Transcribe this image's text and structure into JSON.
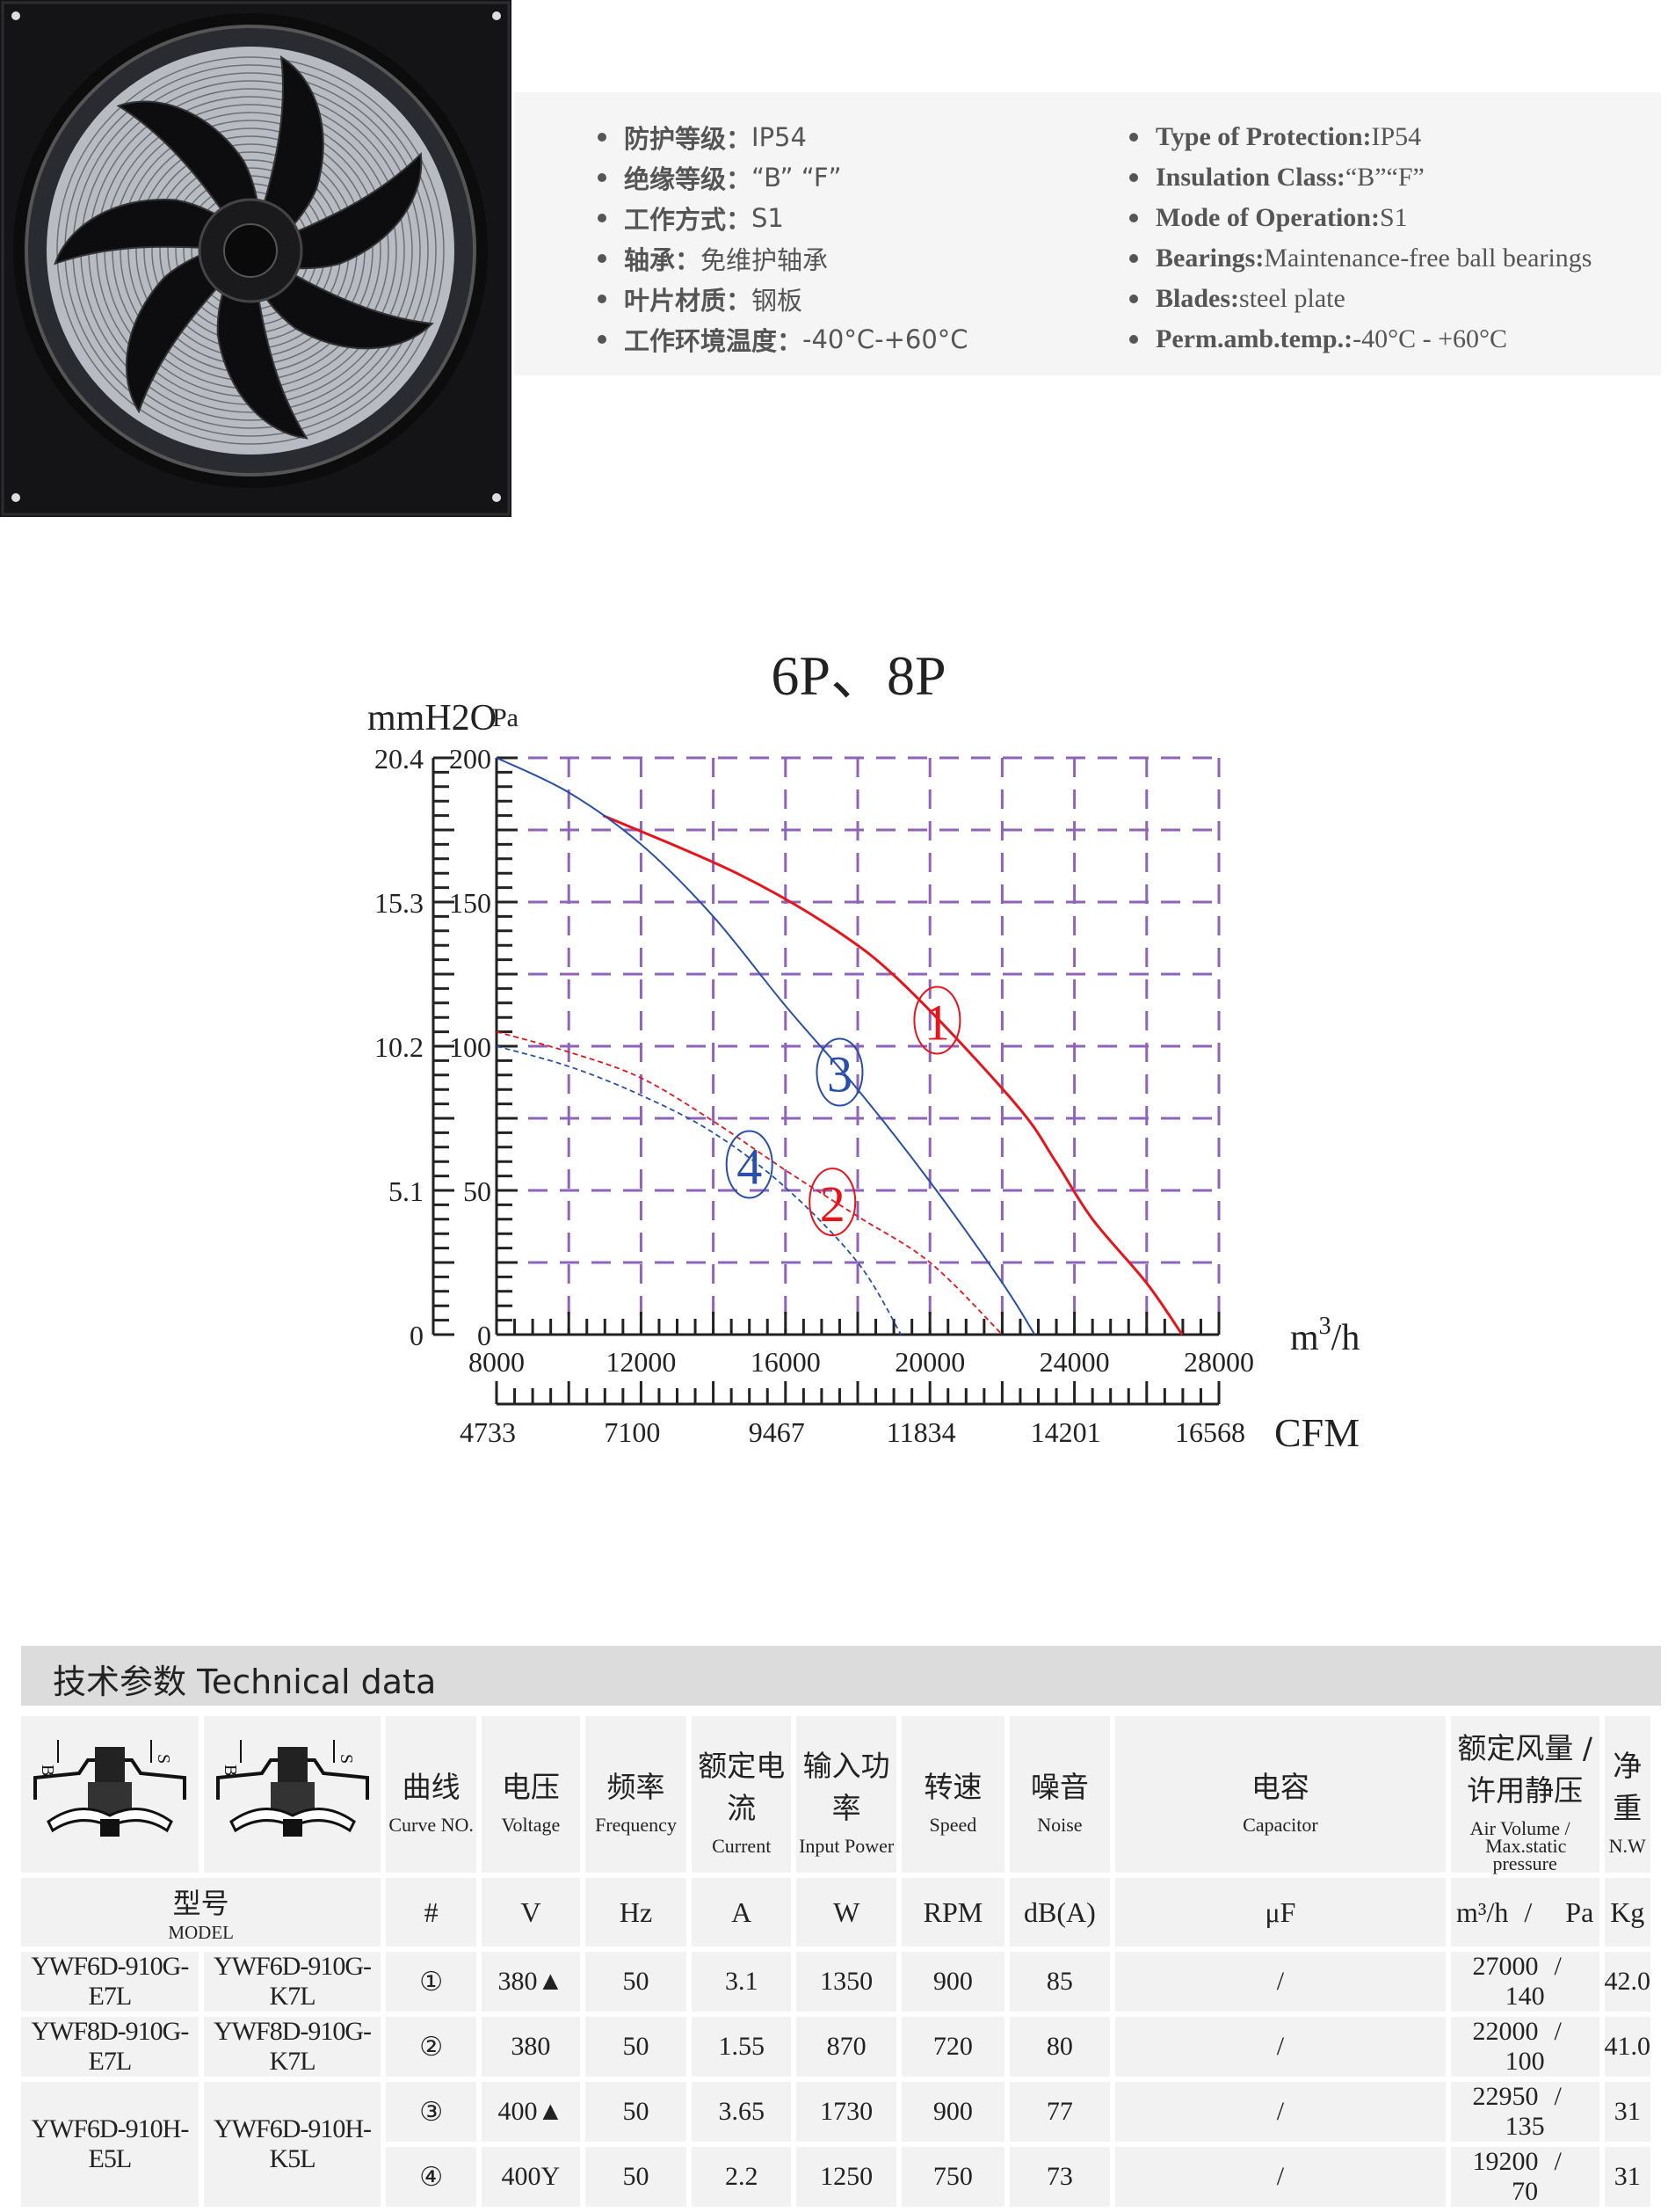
{
  "specs_zh": [
    {
      "label": "防护等级：",
      "value": "IP54"
    },
    {
      "label": "绝缘等级：",
      "value": "“B”  “F”"
    },
    {
      "label": "工作方式：",
      "value": "S1"
    },
    {
      "label": "轴承：",
      "value": "免维护轴承"
    },
    {
      "label": "叶片材质：",
      "value": "钢板"
    },
    {
      "label": "工作环境温度：",
      "value": "-40°C-+60°C"
    }
  ],
  "specs_en": [
    {
      "label": "Type of Protection:",
      "value": " IP54"
    },
    {
      "label": "Insulation Class:",
      "value": " “B”“F”"
    },
    {
      "label": "Mode of Operation:",
      "value": " S1"
    },
    {
      "label": "Bearings:",
      "value": " Maintenance-free ball bearings"
    },
    {
      "label": "Blades:",
      "value": " steel plate"
    },
    {
      "label": "Perm.amb.temp.:",
      "value": " -40°C - +60°C"
    }
  ],
  "chart_data": {
    "type": "line",
    "title": "6P、8P",
    "ylabel_left": "mmH2O",
    "ylabel_right": "Pa",
    "xlabel": "m3/h",
    "xlabel_secondary": "CFM",
    "xlim": [
      8000,
      28000
    ],
    "ylim": [
      0,
      200
    ],
    "x_ticks": [
      "8000",
      "12000",
      "16000",
      "20000",
      "24000",
      "28000"
    ],
    "x_secondary_ticks": [
      "4733",
      "7100",
      "9467",
      "11834",
      "14201",
      "16568"
    ],
    "y_ticks_pa": [
      "0",
      "50",
      "100",
      "150",
      "200"
    ],
    "y_ticks_mmh2o": [
      "0",
      "5.1",
      "10.2",
      "15.3",
      "20.4"
    ],
    "grid": true,
    "grid_color": "#8e63b8",
    "series": [
      {
        "name": "1",
        "color": "#e8141c",
        "dashed": false,
        "x": [
          10950,
          14650,
          17420,
          19390,
          22370,
          23480,
          24500,
          25990,
          26980
        ],
        "y": [
          180,
          160,
          140,
          120,
          80,
          60,
          40,
          18,
          0
        ]
      },
      {
        "name": "2",
        "color": "#e8141c",
        "dashed": true,
        "x": [
          8000,
          10000,
          12000,
          14000,
          16000,
          18000,
          20000,
          22000
        ],
        "y": [
          105,
          98,
          89,
          74,
          57,
          41,
          25,
          0
        ]
      },
      {
        "name": "3",
        "color": "#2a4fa8",
        "dashed": false,
        "x": [
          8000,
          10000,
          12000,
          14000,
          16000,
          18000,
          20000,
          22000,
          22900
        ],
        "y": [
          200,
          188,
          170,
          145,
          114,
          85,
          53,
          18,
          0
        ]
      },
      {
        "name": "4",
        "color": "#2a4fa8",
        "dashed": true,
        "x": [
          8000,
          10000,
          12000,
          14000,
          16000,
          18000,
          19200
        ],
        "y": [
          100,
          93,
          83,
          70,
          51,
          25,
          0
        ]
      }
    ],
    "curve_labels": [
      {
        "text": "1",
        "x": 20200,
        "y": 109,
        "color": "#e8141c"
      },
      {
        "text": "2",
        "x": 17300,
        "y": 46,
        "color": "#e8141c"
      },
      {
        "text": "3",
        "x": 17500,
        "y": 91,
        "color": "#2a4fa8"
      },
      {
        "text": "4",
        "x": 15000,
        "y": 59,
        "color": "#2a4fa8"
      }
    ]
  },
  "tech": {
    "title": "技术参数 Technical data",
    "headers": [
      {
        "zh": "曲线",
        "en": "Curve NO."
      },
      {
        "zh": "电压",
        "en": "Voltage"
      },
      {
        "zh": "频率",
        "en": "Frequency"
      },
      {
        "zh": "额定电流",
        "en": "Current"
      },
      {
        "zh": "输入功率",
        "en": "Input Power"
      },
      {
        "zh": "转速",
        "en": "Speed"
      },
      {
        "zh": "噪音",
        "en": "Noise"
      },
      {
        "zh": "电容",
        "en": "Capacitor"
      },
      {
        "zh": "额定风量 / 许用静压",
        "en": "Air Volume  /",
        "en2": "Max.static pressure"
      },
      {
        "zh": "净重",
        "en": "N.W"
      }
    ],
    "motor_labels": {
      "b": "B",
      "s": "S"
    },
    "model_zh": "型号",
    "model_en": "MODEL",
    "units": [
      "#",
      "V",
      "Hz",
      "A",
      "W",
      "RPM",
      "dB(A)",
      "μF",
      "m³/h",
      "/",
      "Pa",
      "Kg"
    ],
    "rows": [
      {
        "model_e": "YWF6D-910G-E7L",
        "model_k": "YWF6D-910G-K7L",
        "curve": "①",
        "voltage": "380▲",
        "hz": "50",
        "current": "3.1",
        "power": "1350",
        "rpm": "900",
        "noise": "85",
        "cap": "/",
        "air": "27000",
        "sep": "/",
        "pressure": "140",
        "nw": "42.0"
      },
      {
        "model_e": "YWF8D-910G-E7L",
        "model_k": "YWF8D-910G-K7L",
        "curve": "②",
        "voltage": "380",
        "hz": "50",
        "current": "1.55",
        "power": "870",
        "rpm": "720",
        "noise": "80",
        "cap": "/",
        "air": "22000",
        "sep": "/",
        "pressure": "100",
        "nw": "41.0"
      },
      {
        "model_e": "YWF6D-910H-E5L",
        "model_k": "YWF6D-910H-K5L",
        "curve": "③",
        "voltage": "400▲",
        "hz": "50",
        "current": "3.65",
        "power": "1730",
        "rpm": "900",
        "noise": "77",
        "cap": "/",
        "air": "22950",
        "sep": "/",
        "pressure": "135",
        "nw": "31"
      },
      {
        "curve": "④",
        "voltage": "400Y",
        "hz": "50",
        "current": "2.2",
        "power": "1250",
        "rpm": "750",
        "noise": "73",
        "cap": "/",
        "air": "19200",
        "sep": "/",
        "pressure": "70",
        "nw": "31"
      }
    ]
  }
}
